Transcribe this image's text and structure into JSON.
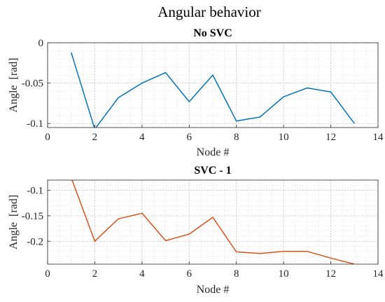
{
  "figure": {
    "title": "Angular behavior"
  },
  "chart_data": [
    {
      "type": "line",
      "title": "No SVC",
      "xlabel": "Node #",
      "ylabel": "Angle  [rad]",
      "xlim": [
        0,
        14
      ],
      "ylim": [
        -0.105,
        0
      ],
      "xticks": [
        0,
        2,
        4,
        6,
        8,
        10,
        12,
        14
      ],
      "yticks": [
        0,
        -0.05,
        -0.1
      ],
      "ytick_labels": [
        "0",
        "-0.05",
        "-0.1"
      ],
      "grid": true,
      "minor_grid": true,
      "series": [
        {
          "color": "#0072BD",
          "x": [
            1,
            2,
            3,
            4,
            5,
            6,
            7,
            8,
            9,
            10,
            11,
            12,
            13
          ],
          "y": [
            -0.012,
            -0.107,
            -0.068,
            -0.05,
            -0.037,
            -0.073,
            -0.04,
            -0.097,
            -0.092,
            -0.067,
            -0.056,
            -0.061,
            -0.1
          ]
        }
      ]
    },
    {
      "type": "line",
      "title": "SVC - 1",
      "xlabel": "Node #",
      "ylabel": "Angle  [rad]",
      "xlim": [
        0,
        14
      ],
      "ylim": [
        -0.245,
        -0.08
      ],
      "xticks": [
        0,
        2,
        4,
        6,
        8,
        10,
        12,
        14
      ],
      "yticks": [
        -0.1,
        -0.15,
        -0.2
      ],
      "ytick_labels": [
        "-0.1",
        "-0.15",
        "-0.2"
      ],
      "grid": true,
      "minor_grid": true,
      "series": [
        {
          "color": "#D95319",
          "x": [
            1,
            2,
            3,
            4,
            5,
            6,
            7,
            8,
            9,
            10,
            11,
            12,
            13
          ],
          "y": [
            -0.075,
            -0.2,
            -0.156,
            -0.145,
            -0.199,
            -0.186,
            -0.153,
            -0.221,
            -0.224,
            -0.22,
            -0.22,
            -0.233,
            -0.245
          ]
        }
      ]
    }
  ]
}
